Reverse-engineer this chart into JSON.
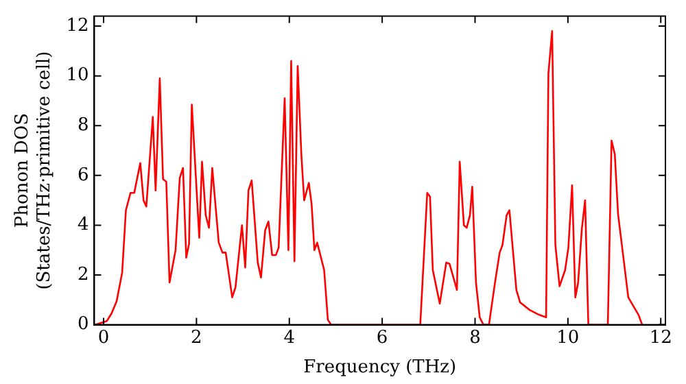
{
  "chart_data": {
    "type": "line",
    "xlabel": "Frequency (THz)",
    "ylabel": "Phonon DOS\n(States/THz·primitive cell)",
    "xlim": [
      -0.2,
      12.1
    ],
    "ylim": [
      0,
      12.4
    ],
    "xticks": [
      0,
      2,
      4,
      6,
      8,
      10,
      12
    ],
    "yticks": [
      0,
      2,
      4,
      6,
      8,
      10,
      12
    ],
    "legend": false,
    "marker": "none",
    "line_style": "solid",
    "x": [
      -0.18,
      0.07,
      0.17,
      0.28,
      0.4,
      0.48,
      0.58,
      0.66,
      0.79,
      0.86,
      0.92,
      1.06,
      1.12,
      1.21,
      1.28,
      1.35,
      1.42,
      1.55,
      1.64,
      1.71,
      1.78,
      1.84,
      1.9,
      2.06,
      2.12,
      2.2,
      2.27,
      2.34,
      2.48,
      2.56,
      2.63,
      2.77,
      2.84,
      2.98,
      3.05,
      3.12,
      3.19,
      3.32,
      3.39,
      3.48,
      3.55,
      3.63,
      3.71,
      3.77,
      3.9,
      3.98,
      4.04,
      4.11,
      4.18,
      4.26,
      4.32,
      4.42,
      4.48,
      4.54,
      4.6,
      4.75,
      4.83,
      4.9,
      6.82,
      6.97,
      7.03,
      7.09,
      7.24,
      7.38,
      7.45,
      7.61,
      7.67,
      7.76,
      7.82,
      7.89,
      7.94,
      8.02,
      8.1,
      8.18,
      8.3,
      8.43,
      8.53,
      8.59,
      8.68,
      8.74,
      8.89,
      8.97,
      9.17,
      9.38,
      9.53,
      9.58,
      9.66,
      9.73,
      9.82,
      9.94,
      10.01,
      10.09,
      10.16,
      10.22,
      10.3,
      10.37,
      10.44,
      10.86,
      10.94,
      11.01,
      11.08,
      11.3,
      11.52,
      11.6
    ],
    "series": [
      {
        "color": "#ff0000",
        "values": [
          0,
          0.15,
          0.45,
          0.94,
          2.1,
          4.6,
          5.3,
          5.3,
          6.5,
          5.0,
          4.75,
          8.35,
          5.4,
          9.9,
          5.85,
          5.75,
          1.7,
          3.0,
          5.9,
          6.3,
          2.7,
          3.25,
          8.85,
          3.5,
          6.55,
          4.4,
          3.9,
          6.3,
          3.3,
          2.9,
          2.9,
          1.1,
          1.5,
          4.0,
          2.3,
          5.4,
          5.8,
          2.5,
          1.9,
          3.8,
          4.15,
          2.8,
          2.8,
          3.1,
          9.1,
          3.0,
          10.6,
          2.55,
          10.4,
          6.8,
          5.0,
          5.7,
          4.85,
          3.0,
          3.3,
          2.2,
          0.2,
          0,
          0,
          5.3,
          5.15,
          2.2,
          0.85,
          2.5,
          2.45,
          1.4,
          6.55,
          4.0,
          3.9,
          4.4,
          5.55,
          1.7,
          0.3,
          0,
          0,
          1.7,
          2.9,
          3.2,
          4.4,
          4.6,
          1.4,
          0.9,
          0.6,
          0.4,
          0.3,
          10.1,
          11.8,
          3.2,
          1.55,
          2.2,
          3.1,
          5.6,
          1.1,
          1.7,
          3.85,
          5.0,
          0,
          0,
          7.4,
          6.85,
          4.45,
          1.1,
          0.4,
          0
        ]
      }
    ]
  }
}
